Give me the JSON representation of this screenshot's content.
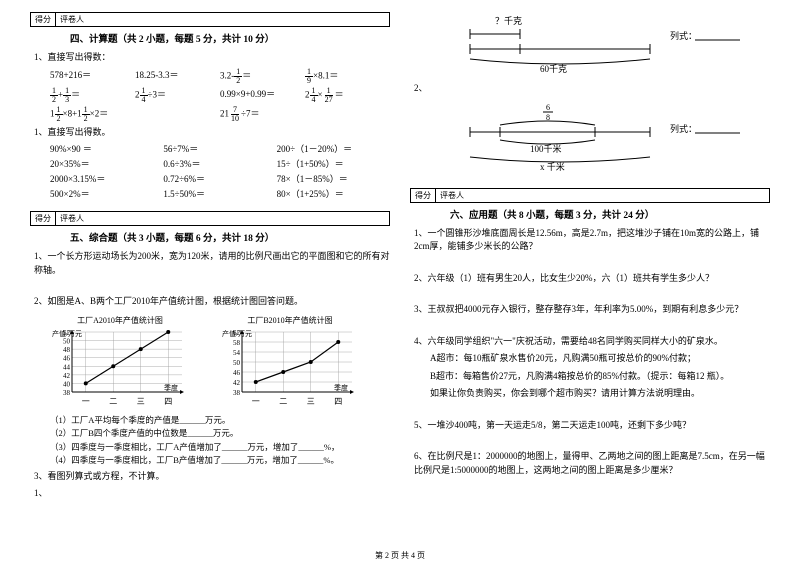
{
  "section4": {
    "score_labels": [
      "得分",
      "评卷人"
    ],
    "title": "四、计算题（共 2 小题，每题 5 分，共计 10 分）",
    "q1": "1、直接写出得数：",
    "row1": [
      "578+216＝",
      "18.25-3.3＝",
      "3.2-<f>1|2</f>＝",
      "<f>1|9</f>×8.1＝"
    ],
    "row2": [
      "<f>1|2</f>+<f>1|3</f>＝",
      "2<f>1|4</f>÷3＝",
      "0.99×9+0.99＝",
      "2<f>1|4</f>×<f>1|27</f>＝"
    ],
    "row3": [
      "1<f>1|2</f>×8+1<f>1|2</f>×2＝",
      "",
      "21<f>7|10</f>÷7＝",
      ""
    ],
    "q2": "1、直接写出得数。",
    "row4": [
      "90%×90 ＝",
      "56÷7%＝",
      "200÷（1－20%）＝"
    ],
    "row5": [
      "20×35%＝",
      "0.6÷3%＝",
      "15÷（1+50%）＝"
    ],
    "row6": [
      "2000×3.15%＝",
      "0.72÷6%＝",
      "78×（1－85%）＝"
    ],
    "row7": [
      "500×2%＝",
      "1.5÷50%＝",
      "80×（1+25%）＝"
    ]
  },
  "section5": {
    "score_labels": [
      "得分",
      "评卷人"
    ],
    "title": "五、综合题（共 3 小题，每题 6 分，共计 18 分）",
    "q1": "1、一个长方形运动场长为200米，宽为120米，请用的比例尺画出它的平面图和它的所有对称轴。",
    "q2": "2、如图是A、B两个工厂2010年产值统计图，根据统计图回答问题。",
    "chartA": {
      "title": "工厂A2010年产值统计图",
      "ylabel": "产值/万元",
      "yvals": [
        38,
        40,
        42,
        44,
        46,
        48,
        50,
        52
      ],
      "xlabels": [
        "一",
        "二",
        "三",
        "四"
      ],
      "xlabel": "季度",
      "data": [
        40,
        44,
        48,
        52
      ],
      "color": "#000"
    },
    "chartB": {
      "title": "工厂B2010年产值统计图",
      "ylabel": "产值/万元",
      "yvals": [
        38,
        42,
        46,
        50,
        54,
        58,
        62
      ],
      "xlabels": [
        "一",
        "二",
        "三",
        "四"
      ],
      "xlabel": "季度",
      "data": [
        42,
        46,
        50,
        58
      ],
      "color": "#000"
    },
    "sub1": "（1）工厂A平均每个季度的产值是______万元。",
    "sub2": "（2）工厂B四个季度产值的中位数是______万元。",
    "sub3": "（3）四季度与一季度相比，工厂A产值增加了______万元，增加了______%，",
    "sub4": "（4）四季度与一季度相比，工厂B产值增加了______万元，增加了______%。",
    "q3": "3、看图列算式或方程，不计算。",
    "q3_1": "1、"
  },
  "diagrams": {
    "d1": {
      "top": "？千克",
      "bottom": "60千克",
      "label": "列式：",
      "blank": "______________"
    },
    "d2": {
      "num": "2、",
      "frac_top": "6",
      "frac_bot": "8",
      "bottom": "100千米",
      "var": "x 千米",
      "label": "列式：",
      "blank": "______________"
    }
  },
  "section6": {
    "score_labels": [
      "得分",
      "评卷人"
    ],
    "title": "六、应用题（共 8 小题，每题 3 分，共计 24 分）",
    "q1": "1、一个圆锥形沙堆底面周长是12.56m，高是2.7m，把这堆沙子铺在10m宽的公路上，铺2cm厚，能铺多少米长的公路？",
    "q2": "2、六年级（1）班有男生20人，比女生少20%，六（1）班共有学生多少人？",
    "q3": "3、王叔叔把4000元存入银行，整存整存3年，年利率为5.00%，到期有利息多少元？",
    "q4": "4、六年级同学组织\"六一\"庆祝活动，需要给48名同学购买同样大小的矿泉水。",
    "q4a": "A超市：每10瓶矿泉水售价20元，凡购满50瓶可按总价的90%付款；",
    "q4b": "B超市：每箱售价27元，凡购满4箱按总价的85%付款。（提示：每箱12 瓶）。",
    "q4c": "如果让你负责购买，你会到哪个超市购买？请用计算方法说明理由。",
    "q5": "5、一堆沙400吨，第一天运走5/8，第二天运走100吨，还剩下多少吨？",
    "q6": "6、在比例尺是1：2000000的地图上，量得甲、乙两地之间的图上距离是7.5cm，在另一幅比例尺是1:5000000的地图上，这两地之间的图上距离是多少厘米？"
  },
  "footer": "第 2 页 共 4 页"
}
